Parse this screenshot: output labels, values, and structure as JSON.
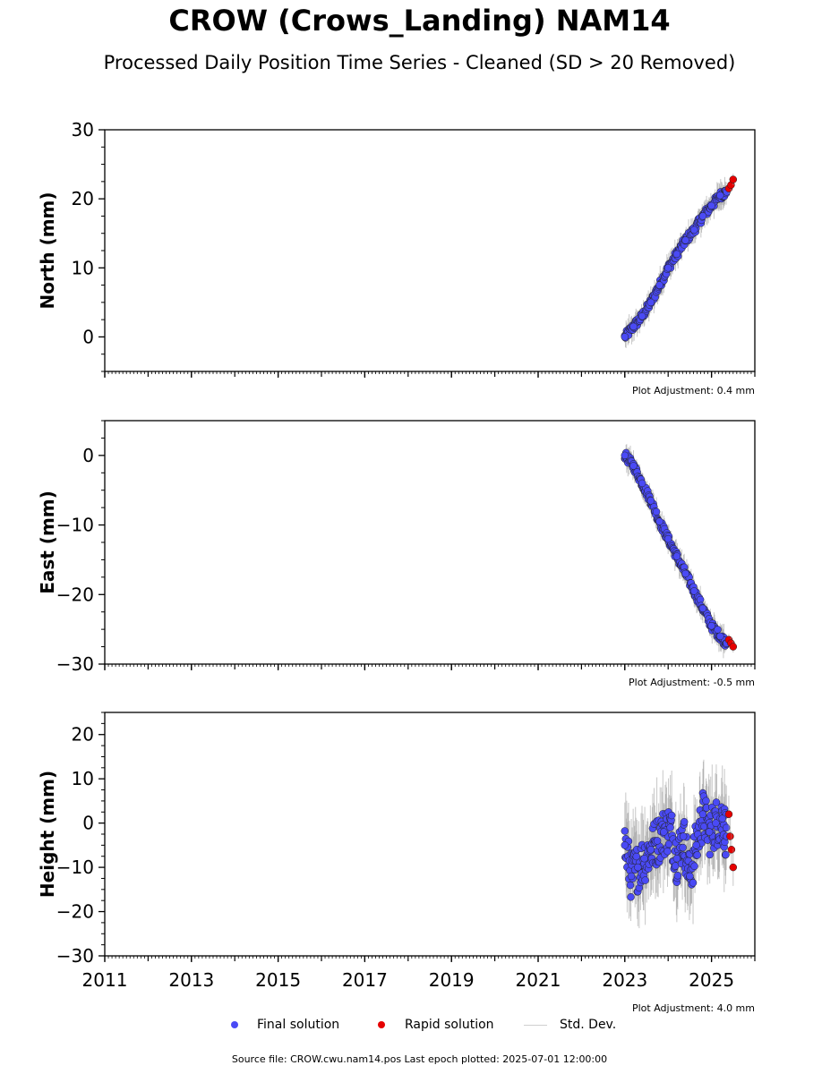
{
  "header": {
    "title": "CROW (Crows_Landing) NAM14",
    "subtitle": "Processed Daily Position Time Series - Cleaned (SD > 20 Removed)"
  },
  "legend": {
    "final_label": "Final solution",
    "rapid_label": "Rapid solution",
    "std_label": "Std. Dev."
  },
  "footer": {
    "source_text": "Source file: CROW.cwu.nam14.pos  Last epoch plotted: 2025-07-01 12:00:00"
  },
  "colors": {
    "final": "#4a4af5",
    "rapid": "#e60000",
    "std_dev": "#9a9a9a"
  },
  "chart_data": [
    {
      "type": "scatter",
      "panel": "north",
      "ylabel": "North (mm)",
      "ylim": [
        -5,
        30
      ],
      "yticks": [
        0,
        10,
        20,
        30
      ],
      "xlim": [
        2011,
        2026
      ],
      "xticks": [
        2011,
        2013,
        2015,
        2017,
        2019,
        2021,
        2023,
        2025
      ],
      "show_x_ticklabels": false,
      "adjustment": "Plot Adjustment: 0.4 mm",
      "series": [
        {
          "name": "Final solution",
          "x": [
            2023.0,
            2023.2,
            2023.4,
            2023.6,
            2023.8,
            2024.0,
            2024.2,
            2024.4,
            2024.6,
            2024.8,
            2025.0,
            2025.2,
            2025.35
          ],
          "y": [
            0.0,
            1.5,
            3.0,
            5.0,
            7.5,
            10.0,
            12.0,
            14.0,
            15.5,
            17.5,
            19.0,
            20.5,
            21.0
          ]
        },
        {
          "name": "Rapid solution",
          "x": [
            2025.4,
            2025.45,
            2025.5
          ],
          "y": [
            21.5,
            22.0,
            22.8
          ]
        }
      ]
    },
    {
      "type": "scatter",
      "panel": "east",
      "ylabel": "East (mm)",
      "ylim": [
        -30,
        5
      ],
      "yticks": [
        -30,
        -20,
        -10,
        0
      ],
      "xlim": [
        2011,
        2026
      ],
      "xticks": [
        2011,
        2013,
        2015,
        2017,
        2019,
        2021,
        2023,
        2025
      ],
      "show_x_ticklabels": false,
      "adjustment": "Plot Adjustment: -0.5 mm",
      "series": [
        {
          "name": "Final solution",
          "x": [
            2023.0,
            2023.2,
            2023.4,
            2023.6,
            2023.8,
            2024.0,
            2024.2,
            2024.4,
            2024.6,
            2024.8,
            2025.0,
            2025.2,
            2025.35
          ],
          "y": [
            0.0,
            -1.5,
            -4.0,
            -6.5,
            -9.5,
            -12.0,
            -14.5,
            -17.0,
            -19.5,
            -22.0,
            -24.5,
            -26.0,
            -27.0
          ]
        },
        {
          "name": "Rapid solution",
          "x": [
            2025.4,
            2025.45,
            2025.5
          ],
          "y": [
            -26.5,
            -27.0,
            -27.5
          ]
        }
      ]
    },
    {
      "type": "scatter",
      "panel": "height",
      "ylabel": "Height (mm)",
      "ylim": [
        -30,
        25
      ],
      "yticks": [
        -30,
        -20,
        -10,
        0,
        10,
        20
      ],
      "xlim": [
        2011,
        2026
      ],
      "xticks": [
        2011,
        2013,
        2015,
        2017,
        2019,
        2021,
        2023,
        2025
      ],
      "xticklabels": [
        "2011",
        "2013",
        "2015",
        "2017",
        "2019",
        "2021",
        "2023",
        "2025"
      ],
      "show_x_ticklabels": true,
      "adjustment": "Plot Adjustment: 4.0 mm",
      "series": [
        {
          "name": "Final solution",
          "x": [
            2023.0,
            2023.15,
            2023.3,
            2023.45,
            2023.6,
            2023.75,
            2023.9,
            2024.05,
            2024.2,
            2024.35,
            2024.5,
            2024.65,
            2024.8,
            2024.95,
            2025.1,
            2025.25,
            2025.35
          ],
          "y": [
            -5.0,
            -12.0,
            -10.0,
            -8.0,
            -6.0,
            -4.0,
            -2.0,
            -1.0,
            -8.0,
            -3.0,
            -12.0,
            -5.0,
            2.0,
            -2.0,
            0.0,
            1.0,
            -3.0
          ]
        },
        {
          "name": "Rapid solution",
          "x": [
            2025.4,
            2025.43,
            2025.46,
            2025.5
          ],
          "y": [
            2.0,
            -3.0,
            -6.0,
            -10.0
          ]
        }
      ]
    }
  ]
}
